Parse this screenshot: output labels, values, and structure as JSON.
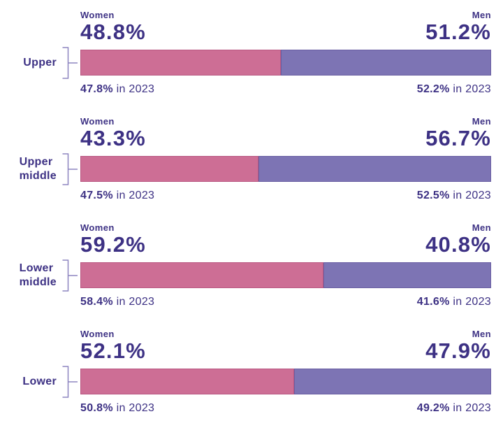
{
  "colors": {
    "women_bar": "#cd6e95",
    "men_bar": "#7d74b4",
    "text": "#3d3184",
    "bracket": "#8d85c0",
    "background": "#ffffff"
  },
  "labels": {
    "women": "Women",
    "men": "Men",
    "prev_suffix": " in 2023"
  },
  "chart_data": {
    "type": "bar",
    "subtype": "horizontal-stacked-100-percent",
    "categories": [
      "Upper",
      "Upper middle",
      "Lower middle",
      "Lower"
    ],
    "series": [
      {
        "name": "Women",
        "color": "#cd6e95",
        "values": [
          48.8,
          43.3,
          59.2,
          52.1
        ]
      },
      {
        "name": "Men",
        "color": "#7d74b4",
        "values": [
          51.2,
          56.7,
          40.8,
          47.9
        ]
      }
    ],
    "comparison_year": 2023,
    "comparison_2023": {
      "Women": [
        47.8,
        47.5,
        58.4,
        50.8
      ],
      "Men": [
        52.2,
        52.5,
        41.6,
        49.2
      ]
    },
    "value_suffix": "%",
    "xlim": [
      0,
      100
    ],
    "grid": false,
    "legend_position": "labels-above-each-bar"
  },
  "groups": [
    {
      "label_line1": "Upper",
      "label_line2": "",
      "women_pct": "48.8%",
      "men_pct": "51.2%",
      "women_width": 48.8,
      "women_prev": "47.8%",
      "men_prev": "52.2%"
    },
    {
      "label_line1": "Upper",
      "label_line2": "middle",
      "women_pct": "43.3%",
      "men_pct": "56.7%",
      "women_width": 43.3,
      "women_prev": "47.5%",
      "men_prev": "52.5%"
    },
    {
      "label_line1": "Lower",
      "label_line2": "middle",
      "women_pct": "59.2%",
      "men_pct": "40.8%",
      "women_width": 59.2,
      "women_prev": "58.4%",
      "men_prev": "41.6%"
    },
    {
      "label_line1": "Lower",
      "label_line2": "",
      "women_pct": "52.1%",
      "men_pct": "47.9%",
      "women_width": 52.1,
      "women_prev": "50.8%",
      "men_prev": "49.2%"
    }
  ]
}
